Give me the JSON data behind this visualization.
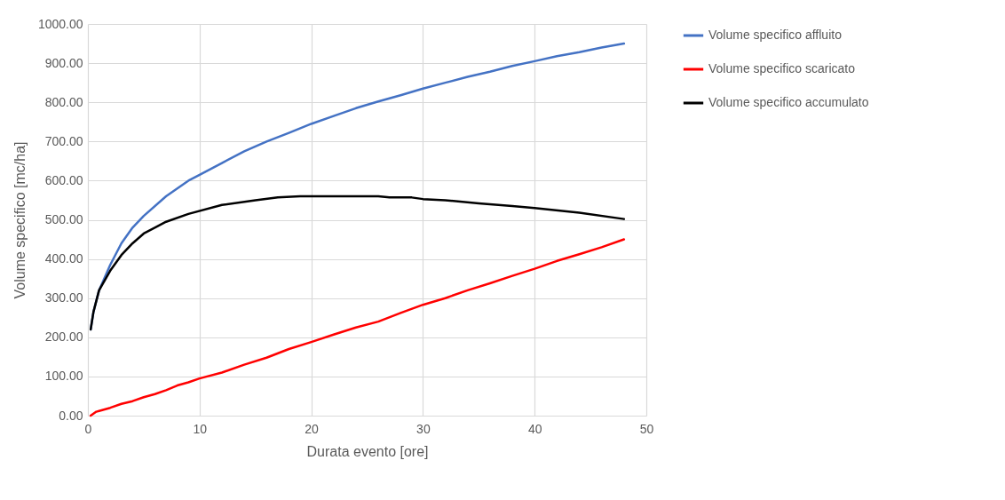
{
  "chart_data": {
    "type": "line",
    "xlabel": "Durata evento  [ore]",
    "ylabel": "Volume specifico [mc/ha]",
    "xlim": [
      0,
      50
    ],
    "xticks": [
      0,
      10,
      20,
      30,
      40,
      50
    ],
    "ylim": [
      0,
      1000
    ],
    "yticks": [
      {
        "value": 0,
        "label": "0.00"
      },
      {
        "value": 100,
        "label": "100.00"
      },
      {
        "value": 200,
        "label": "200.00"
      },
      {
        "value": 300,
        "label": "300.00"
      },
      {
        "value": 400,
        "label": "400.00"
      },
      {
        "value": 500,
        "label": "500.00"
      },
      {
        "value": 600,
        "label": "600.00"
      },
      {
        "value": 700,
        "label": "700.00"
      },
      {
        "value": 800,
        "label": "800.00"
      },
      {
        "value": 900,
        "label": "900.00"
      },
      {
        "value": 1000,
        "label": "1000.00"
      }
    ],
    "grid": true,
    "legend": "right",
    "marker": "none",
    "line_style": "solid",
    "series": [
      {
        "name": "Volume specifico affluito",
        "color": "#4472c4",
        "x": [
          0.25,
          0.5,
          1,
          2,
          3,
          4,
          5,
          7,
          9,
          10,
          12,
          14,
          16,
          18,
          20,
          22,
          24,
          26,
          28,
          30,
          32,
          34,
          36,
          38,
          40,
          42,
          44,
          46,
          48
        ],
        "values": [
          220,
          265,
          320,
          385,
          440,
          480,
          510,
          560,
          600,
          615,
          645,
          675,
          700,
          722,
          745,
          765,
          785,
          802,
          818,
          835,
          850,
          865,
          878,
          893,
          905,
          918,
          928,
          940,
          950
        ]
      },
      {
        "name": "Volume specifico scaricato",
        "color": "#ff0000",
        "x": [
          0.25,
          0.75,
          1,
          2,
          3,
          4,
          5,
          6,
          7,
          8,
          9,
          10,
          12,
          14,
          16,
          18,
          20,
          22,
          24,
          26,
          28,
          30,
          32,
          34,
          36,
          38,
          40,
          42,
          44,
          46,
          48
        ],
        "values": [
          0,
          10,
          12,
          20,
          30,
          37,
          47,
          55,
          65,
          77,
          85,
          95,
          110,
          130,
          148,
          170,
          188,
          207,
          225,
          240,
          262,
          283,
          300,
          320,
          338,
          357,
          375,
          395,
          412,
          430,
          450
        ]
      },
      {
        "name": "Volume specifico accumulato",
        "color": "#000000",
        "x": [
          0.25,
          0.5,
          1,
          2,
          3,
          4,
          5,
          7,
          9,
          12,
          15,
          17,
          19,
          22,
          26,
          27,
          29,
          30,
          32,
          35,
          38,
          40,
          44,
          48
        ],
        "values": [
          220,
          265,
          320,
          370,
          410,
          440,
          465,
          495,
          515,
          538,
          550,
          557,
          560,
          560,
          560,
          557,
          557,
          553,
          550,
          542,
          535,
          530,
          518,
          502
        ]
      }
    ]
  }
}
